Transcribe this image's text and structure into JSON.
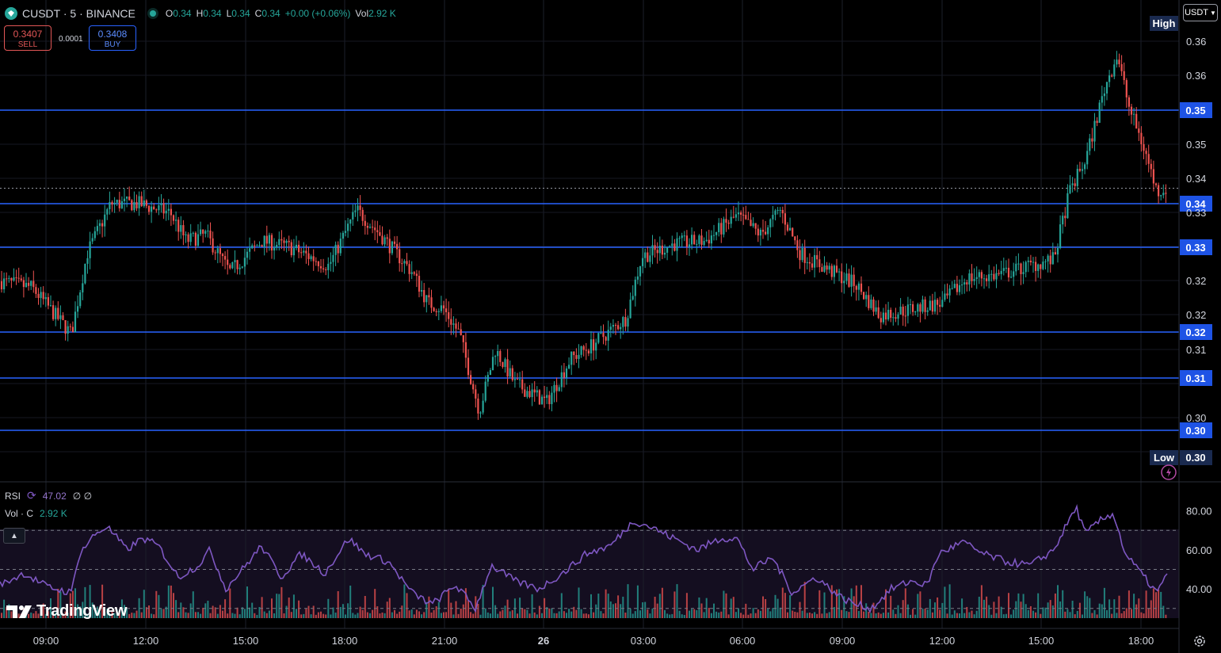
{
  "header": {
    "symbol": "CUSDT · 5 · BINANCE",
    "open_label": "O",
    "open": "0.34",
    "high_label": "H",
    "high": "0.34",
    "low_label": "L",
    "low": "0.34",
    "close_label": "C",
    "close": "0.34",
    "change": "+0.00 (+0.06%)",
    "vol_label": "Vol",
    "vol": "2.92 K"
  },
  "trade": {
    "sell_price": "0.3407",
    "sell_label": "SELL",
    "spread": "0.0001",
    "buy_price": "0.3408",
    "buy_label": "BUY"
  },
  "currency_button": "USDT",
  "indicators": {
    "rsi_label": "RSI",
    "rsi_value": "47.02",
    "rsi_extra": "∅ ∅",
    "vol_label": "Vol · C",
    "vol_value": "2.92 K"
  },
  "logo_text": "TradingView",
  "colors": {
    "up": "#26a69a",
    "down": "#ef5350",
    "level_line": "#2962ff",
    "rsi_line": "#7e57c2",
    "rsi_band": "#1a1228",
    "label_bg": "#1e53e5",
    "marker_bg": "#1a2a4f"
  },
  "icons": [
    "diamond-icon",
    "status-dot-icon",
    "chevron-down-icon",
    "collapse-chevron-icon",
    "tradingview-logo-icon",
    "settings-gear-icon",
    "flash-icon",
    "rsi-loop-icon"
  ],
  "chart_data": {
    "type": "candlestick",
    "timeframe": "5",
    "x_ticks": [
      "09:00",
      "12:00",
      "15:00",
      "18:00",
      "21:00",
      "26",
      "03:00",
      "06:00",
      "09:00",
      "12:00",
      "15:00",
      "18:00"
    ],
    "price_ticks": [
      "0.36",
      "0.36",
      "0.35",
      "0.34",
      "0.33",
      "0.32",
      "0.32",
      "0.31",
      "0.30"
    ],
    "price_range": [
      0.297,
      0.367
    ],
    "horizontal_levels": [
      "0.35",
      "0.34",
      "0.33",
      "0.32",
      "0.31",
      "0.30"
    ],
    "level_values": [
      0.3495,
      0.3385,
      0.3335,
      0.3235,
      0.318,
      0.312
    ],
    "current_price": 0.3405,
    "high_marker": {
      "label": "High",
      "value": 0.366
    },
    "low_marker": {
      "label": "Low",
      "value": "0.30"
    },
    "close_anchors": [
      [
        0,
        0.3255
      ],
      [
        40,
        0.3245
      ],
      [
        90,
        0.317
      ],
      [
        110,
        0.33
      ],
      [
        140,
        0.338
      ],
      [
        175,
        0.338
      ],
      [
        215,
        0.3365
      ],
      [
        235,
        0.332
      ],
      [
        260,
        0.333
      ],
      [
        290,
        0.327
      ],
      [
        330,
        0.332
      ],
      [
        365,
        0.331
      ],
      [
        415,
        0.328
      ],
      [
        450,
        0.337
      ],
      [
        480,
        0.333
      ],
      [
        520,
        0.327
      ],
      [
        540,
        0.322
      ],
      [
        560,
        0.321
      ],
      [
        580,
        0.317
      ],
      [
        605,
        0.3045
      ],
      [
        625,
        0.3145
      ],
      [
        650,
        0.309
      ],
      [
        690,
        0.306
      ],
      [
        720,
        0.313
      ],
      [
        745,
        0.315
      ],
      [
        790,
        0.3195
      ],
      [
        810,
        0.3295
      ],
      [
        850,
        0.3315
      ],
      [
        890,
        0.332
      ],
      [
        930,
        0.336
      ],
      [
        960,
        0.333
      ],
      [
        985,
        0.337
      ],
      [
        1010,
        0.33
      ],
      [
        1050,
        0.327
      ],
      [
        1080,
        0.325
      ],
      [
        1110,
        0.32
      ],
      [
        1150,
        0.321
      ],
      [
        1190,
        0.322
      ],
      [
        1220,
        0.326
      ],
      [
        1260,
        0.3265
      ],
      [
        1300,
        0.328
      ],
      [
        1330,
        0.329
      ],
      [
        1350,
        0.34
      ],
      [
        1370,
        0.345
      ],
      [
        1395,
        0.357
      ],
      [
        1410,
        0.362
      ],
      [
        1425,
        0.3535
      ],
      [
        1445,
        0.3465
      ],
      [
        1460,
        0.34
      ],
      [
        1473,
        0.3405
      ]
    ],
    "rsi": {
      "value": 47.02,
      "ticks": [
        "80.00",
        "60.00",
        "40.00"
      ],
      "overbought": 70,
      "oversold": 30,
      "midline": 50,
      "range": [
        25,
        90
      ]
    },
    "rsi_anchors": [
      [
        0,
        42
      ],
      [
        30,
        48
      ],
      [
        60,
        41
      ],
      [
        90,
        38
      ],
      [
        100,
        58
      ],
      [
        120,
        68
      ],
      [
        135,
        72
      ],
      [
        160,
        60
      ],
      [
        180,
        66
      ],
      [
        200,
        62
      ],
      [
        225,
        46
      ],
      [
        250,
        52
      ],
      [
        265,
        60
      ],
      [
        285,
        40
      ],
      [
        310,
        52
      ],
      [
        330,
        62
      ],
      [
        355,
        46
      ],
      [
        380,
        58
      ],
      [
        410,
        48
      ],
      [
        440,
        66
      ],
      [
        460,
        58
      ],
      [
        490,
        54
      ],
      [
        520,
        38
      ],
      [
        545,
        32
      ],
      [
        575,
        42
      ],
      [
        600,
        30
      ],
      [
        620,
        52
      ],
      [
        650,
        44
      ],
      [
        680,
        40
      ],
      [
        710,
        48
      ],
      [
        740,
        58
      ],
      [
        770,
        62
      ],
      [
        800,
        75
      ],
      [
        820,
        72
      ],
      [
        850,
        66
      ],
      [
        880,
        60
      ],
      [
        910,
        66
      ],
      [
        930,
        66
      ],
      [
        950,
        50
      ],
      [
        975,
        56
      ],
      [
        1000,
        38
      ],
      [
        1030,
        46
      ],
      [
        1060,
        36
      ],
      [
        1080,
        32
      ],
      [
        1100,
        30
      ],
      [
        1125,
        40
      ],
      [
        1150,
        44
      ],
      [
        1170,
        42
      ],
      [
        1185,
        58
      ],
      [
        1215,
        64
      ],
      [
        1240,
        58
      ],
      [
        1270,
        54
      ],
      [
        1300,
        52
      ],
      [
        1330,
        60
      ],
      [
        1358,
        82
      ],
      [
        1370,
        68
      ],
      [
        1385,
        74
      ],
      [
        1405,
        79
      ],
      [
        1420,
        58
      ],
      [
        1440,
        48
      ],
      [
        1460,
        38
      ],
      [
        1473,
        47
      ]
    ]
  }
}
